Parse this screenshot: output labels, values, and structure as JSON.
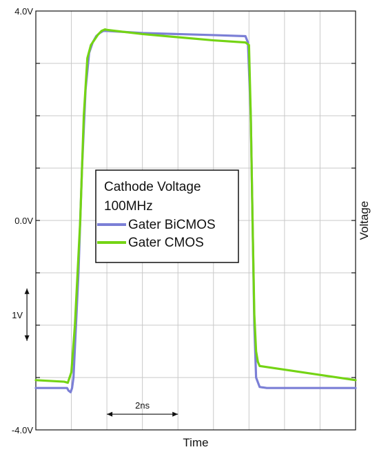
{
  "chart_data": {
    "type": "line",
    "title": "",
    "xlabel": "Time",
    "ylabel": "Voltage",
    "x_unit": "ns",
    "xlim": [
      0,
      9
    ],
    "ylim": [
      -4.0,
      4.0
    ],
    "y_ticks": [
      {
        "value": 4.0,
        "label": "4.0V"
      },
      {
        "value": 0.0,
        "label": "0.0V"
      },
      {
        "value": -4.0,
        "label": "-4.0V"
      }
    ],
    "grid": true,
    "legend": {
      "placement": "center-left",
      "title_lines": [
        "Cathode Voltage",
        "100MHz"
      ]
    },
    "series": [
      {
        "name": "Gater BiCMOS",
        "color": "#7b7fd6",
        "x": [
          0,
          0.8,
          0.88,
          0.92,
          0.98,
          1.02,
          1.06,
          1.2,
          1.3,
          1.4,
          1.5,
          1.6,
          1.7,
          1.8,
          1.9,
          2.0,
          2.5,
          3.0,
          4.0,
          5.0,
          5.9,
          5.97,
          6.05,
          6.1,
          6.15,
          6.2,
          6.3,
          6.5,
          7.0,
          8.0,
          9.0
        ],
        "y": [
          -3.2,
          -3.2,
          -3.2,
          -3.25,
          -3.28,
          -3.2,
          -3.0,
          -1.0,
          1.0,
          2.5,
          3.2,
          3.4,
          3.52,
          3.58,
          3.62,
          3.62,
          3.6,
          3.58,
          3.56,
          3.54,
          3.52,
          3.4,
          2.0,
          0.0,
          -2.0,
          -3.0,
          -3.18,
          -3.2,
          -3.2,
          -3.2,
          -3.2
        ]
      },
      {
        "name": "Gater CMOS",
        "color": "#74d414",
        "x": [
          0,
          0.8,
          0.9,
          1.0,
          1.1,
          1.25,
          1.35,
          1.45,
          1.55,
          1.65,
          1.75,
          1.85,
          1.95,
          2.0,
          3.0,
          4.0,
          5.0,
          5.9,
          6.0,
          6.05,
          6.1,
          6.15,
          6.2,
          6.25,
          6.3,
          7.0,
          8.0,
          9.0
        ],
        "y": [
          -3.05,
          -3.08,
          -3.1,
          -2.9,
          -2.0,
          0.0,
          2.0,
          3.1,
          3.35,
          3.45,
          3.55,
          3.62,
          3.65,
          3.64,
          3.56,
          3.5,
          3.44,
          3.4,
          3.35,
          2.0,
          0.0,
          -1.8,
          -2.5,
          -2.7,
          -2.78,
          -2.85,
          -2.95,
          -3.05
        ]
      }
    ],
    "annotations": [
      {
        "label": "1V",
        "orientation": "vertical",
        "x": -0.25,
        "y_from": -1.3,
        "y_to": -2.3
      },
      {
        "label": "2ns",
        "orientation": "horizontal",
        "y": -3.7,
        "x_from": 2.0,
        "x_to": 4.0
      }
    ]
  }
}
